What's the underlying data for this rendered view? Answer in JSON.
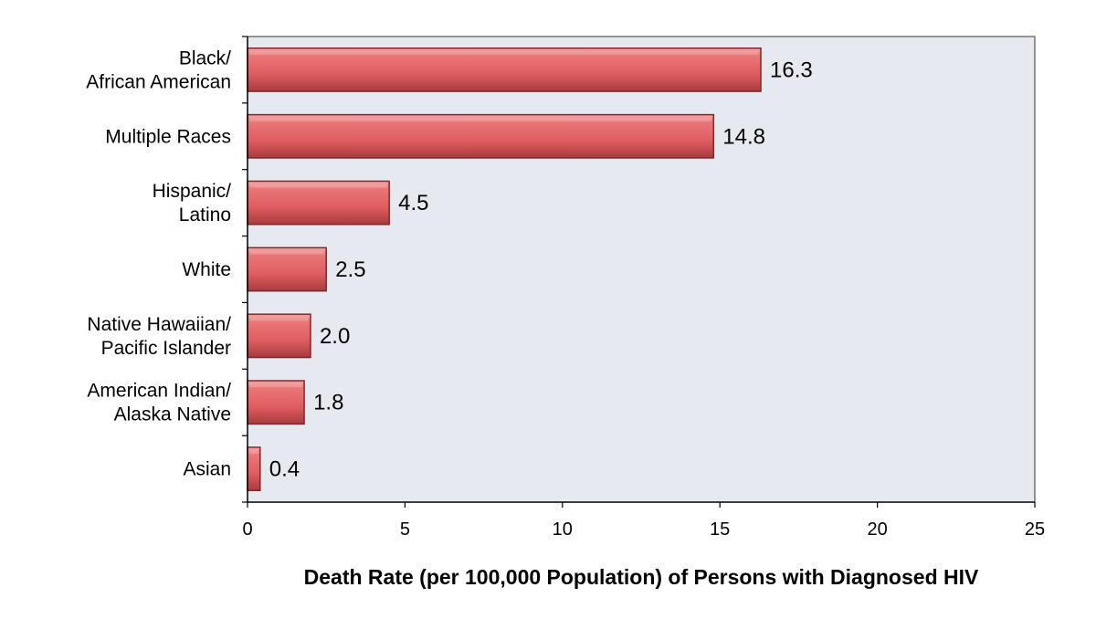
{
  "chart_data": {
    "type": "bar",
    "orientation": "horizontal",
    "categories": [
      [
        "Black/",
        "African American"
      ],
      [
        "Multiple Races"
      ],
      [
        "Hispanic/",
        "Latino"
      ],
      [
        "White"
      ],
      [
        "Native Hawaiian/",
        "Pacific Islander"
      ],
      [
        "American Indian/",
        "Alaska Native"
      ],
      [
        "Asian"
      ]
    ],
    "values": [
      16.3,
      14.8,
      4.5,
      2.5,
      2.0,
      1.8,
      0.4
    ],
    "value_labels": [
      "16.3",
      "14.8",
      "4.5",
      "2.5",
      "2.0",
      "1.8",
      "0.4"
    ],
    "xlabel": "Death Rate (per 100,000 Population) of Persons with Diagnosed HIV",
    "xlim": [
      0,
      25
    ],
    "xticks": [
      0,
      5,
      10,
      15,
      20,
      25
    ],
    "grid": false,
    "colors": {
      "bar": "#e05d60",
      "bar_dark": "#7a2a2c",
      "bar_light": "#f2a3a4",
      "plot_bg": "#e6e9f0"
    }
  }
}
